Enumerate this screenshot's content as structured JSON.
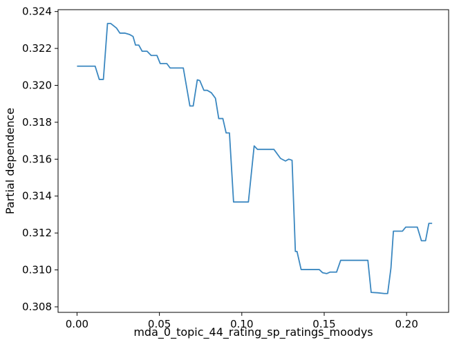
{
  "chart_data": {
    "type": "line",
    "xlabel": "mda_0_topic_44_rating_sp_ratings_moodys",
    "ylabel": "Partial dependence",
    "xlim": [
      -0.0115,
      0.2255
    ],
    "ylim": [
      0.3077,
      0.3241
    ],
    "xticks": [
      {
        "value": 0.0,
        "label": "0.00"
      },
      {
        "value": 0.05,
        "label": "0.05"
      },
      {
        "value": 0.1,
        "label": "0.10"
      },
      {
        "value": 0.15,
        "label": "0.15"
      },
      {
        "value": 0.2,
        "label": "0.20"
      }
    ],
    "yticks": [
      {
        "value": 0.308,
        "label": "0.308"
      },
      {
        "value": 0.31,
        "label": "0.310"
      },
      {
        "value": 0.312,
        "label": "0.312"
      },
      {
        "value": 0.314,
        "label": "0.314"
      },
      {
        "value": 0.316,
        "label": "0.316"
      },
      {
        "value": 0.318,
        "label": "0.318"
      },
      {
        "value": 0.32,
        "label": "0.320"
      },
      {
        "value": 0.322,
        "label": "0.322"
      },
      {
        "value": 0.324,
        "label": "0.324"
      }
    ],
    "grid": false,
    "series": [
      {
        "color": "#3a87c0",
        "x": [
          0.0,
          0.011,
          0.0135,
          0.016,
          0.0185,
          0.0205,
          0.024,
          0.026,
          0.029,
          0.032,
          0.034,
          0.0355,
          0.0375,
          0.0395,
          0.0425,
          0.045,
          0.0485,
          0.0505,
          0.0545,
          0.0565,
          0.0605,
          0.0645,
          0.0685,
          0.0705,
          0.073,
          0.0745,
          0.077,
          0.079,
          0.0815,
          0.084,
          0.086,
          0.0885,
          0.0905,
          0.0925,
          0.095,
          0.0985,
          0.104,
          0.1075,
          0.1095,
          0.113,
          0.1165,
          0.1195,
          0.1235,
          0.1265,
          0.1285,
          0.1305,
          0.1325,
          0.1335,
          0.136,
          0.1385,
          0.147,
          0.149,
          0.1515,
          0.1535,
          0.1575,
          0.16,
          0.1715,
          0.1765,
          0.1785,
          0.1825,
          0.1865,
          0.1885,
          0.1905,
          0.192,
          0.1975,
          0.1995,
          0.2035,
          0.2065,
          0.209,
          0.2115,
          0.2135,
          0.2155
        ],
        "y": [
          0.32104,
          0.32104,
          0.32032,
          0.32032,
          0.32335,
          0.32335,
          0.3231,
          0.32283,
          0.32283,
          0.32275,
          0.32265,
          0.32218,
          0.32218,
          0.32185,
          0.32185,
          0.32162,
          0.32162,
          0.32118,
          0.32118,
          0.32094,
          0.32094,
          0.32094,
          0.31888,
          0.31888,
          0.3203,
          0.32026,
          0.31973,
          0.31973,
          0.3196,
          0.3193,
          0.3182,
          0.3182,
          0.31742,
          0.31742,
          0.31368,
          0.31368,
          0.31368,
          0.31672,
          0.31653,
          0.31653,
          0.31653,
          0.31653,
          0.31604,
          0.3159,
          0.316,
          0.31594,
          0.311,
          0.311,
          0.31002,
          0.31002,
          0.31002,
          0.30985,
          0.3098,
          0.30988,
          0.30988,
          0.31052,
          0.31052,
          0.31052,
          0.30878,
          0.30876,
          0.30872,
          0.30872,
          0.3101,
          0.3121,
          0.3121,
          0.31232,
          0.31232,
          0.31232,
          0.31158,
          0.31158,
          0.31252,
          0.31252
        ]
      }
    ]
  }
}
